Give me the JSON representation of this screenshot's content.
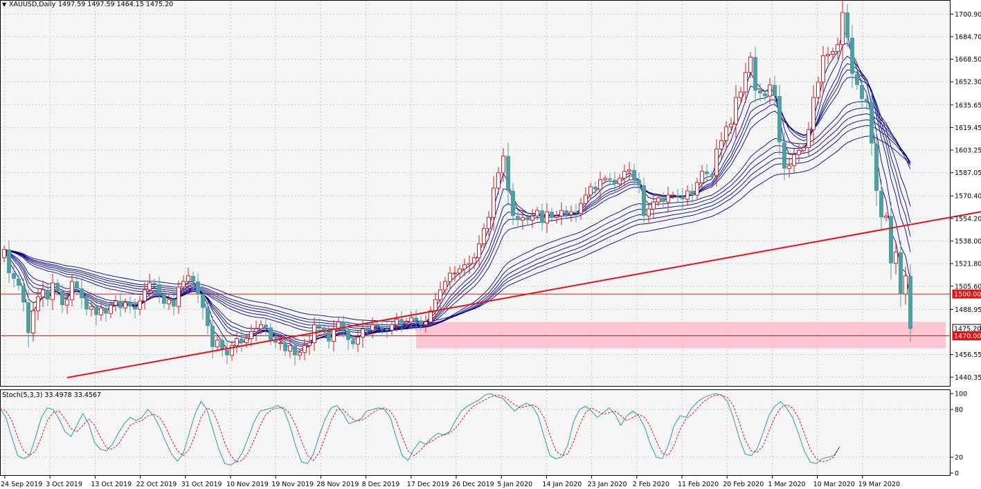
{
  "header": {
    "symbol": "XAUUSD,Daily",
    "ohlc": "1497.59 1497.59 1464.15 1475.20"
  },
  "sub_header": {
    "indicator": "Stoch(5,3,3) 33.4978 33.4567"
  },
  "colors": {
    "background": "#f5f5f5",
    "bull_candle": "#d81e1e",
    "bear_candle": "#4f9ea0",
    "ma_ribbon": "#00008b",
    "trendline": "#e81010",
    "support_zone": "#ffb6c8",
    "level_line": "#e81010",
    "stoch_main": "#2a9aa0",
    "stoch_signal": "#e81010"
  },
  "chart_data": [
    {
      "type": "candlestick",
      "title": "XAUUSD,Daily",
      "x_tick_labels": [
        "24 Sep 2019",
        "3 Oct 2019",
        "13 Oct 2019",
        "22 Oct 2019",
        "31 Oct 2019",
        "10 Nov 2019",
        "19 Nov 2019",
        "28 Nov 2019",
        "8 Dec 2019",
        "17 Dec 2019",
        "26 Dec 2019",
        "5 Jan 2020",
        "14 Jan 2020",
        "23 Jan 2020",
        "2 Feb 2020",
        "11 Feb 2020",
        "20 Feb 2020",
        "1 Mar 2020",
        "10 Mar 2020",
        "19 Mar 2020"
      ],
      "y_tick_labels": [
        "1700.90",
        "1684.70",
        "1668.50",
        "1652.30",
        "1635.65",
        "1619.45",
        "1603.25",
        "1587.05",
        "1570.40",
        "1554.20",
        "1538.00",
        "1521.80",
        "1505.60",
        "1488.95",
        "1456.55",
        "1440.35"
      ],
      "ylim": [
        1438,
        1707
      ],
      "price_labels": [
        {
          "value": 1500.0,
          "text": "1500.00"
        },
        {
          "value": 1475.2,
          "text": "1475.20"
        },
        {
          "value": 1470.0,
          "text": "1470.00"
        }
      ],
      "horizontal_levels": [
        1500.0,
        1470.0
      ],
      "support_zone": [
        1461,
        1480
      ],
      "trendline_points": [
        [
          13,
          1440
        ],
        [
          238,
          1582
        ]
      ],
      "close": [
        1532,
        1515,
        1511,
        1506,
        1494,
        1472,
        1488,
        1498,
        1503,
        1496,
        1508,
        1502,
        1492,
        1496,
        1509,
        1504,
        1497,
        1489,
        1491,
        1485,
        1490,
        1486,
        1492,
        1495,
        1490,
        1494,
        1491,
        1489,
        1495,
        1503,
        1508,
        1507,
        1500,
        1493,
        1496,
        1491,
        1505,
        1509,
        1513,
        1509,
        1500,
        1490,
        1477,
        1462,
        1467,
        1460,
        1456,
        1463,
        1468,
        1465,
        1468,
        1473,
        1475,
        1478,
        1476,
        1467,
        1465,
        1465,
        1459,
        1463,
        1456,
        1458,
        1463,
        1465,
        1478,
        1476,
        1473,
        1466,
        1475,
        1480,
        1474,
        1467,
        1464,
        1469,
        1475,
        1474,
        1478,
        1477,
        1475,
        1474,
        1478,
        1482,
        1479,
        1480,
        1483,
        1481,
        1478,
        1480,
        1488,
        1496,
        1503,
        1509,
        1515,
        1515,
        1518,
        1521,
        1522,
        1526,
        1536,
        1547,
        1555,
        1576,
        1587,
        1599,
        1574,
        1556,
        1553,
        1555,
        1553,
        1556,
        1560,
        1551,
        1559,
        1555,
        1556,
        1560,
        1557,
        1559,
        1558,
        1565,
        1571,
        1577,
        1575,
        1582,
        1583,
        1582,
        1579,
        1583,
        1588,
        1589,
        1582,
        1578,
        1556,
        1561,
        1566,
        1569,
        1566,
        1571,
        1571,
        1570,
        1568,
        1574,
        1571,
        1580,
        1588,
        1586,
        1585,
        1604,
        1610,
        1620,
        1622,
        1641,
        1645,
        1659,
        1670,
        1646,
        1644,
        1642,
        1650,
        1642,
        1609,
        1590,
        1592,
        1600,
        1603,
        1605,
        1618,
        1641,
        1652,
        1671,
        1672,
        1674,
        1679,
        1702,
        1684,
        1658,
        1650,
        1640,
        1638,
        1608,
        1574,
        1555,
        1556,
        1522,
        1530,
        1500,
        1513,
        1475
      ]
    },
    {
      "type": "line",
      "title": "Stoch(5,3,3) 33.4978 33.4567",
      "y_tick_labels": [
        "100",
        "80",
        "20",
        "0"
      ],
      "ylim": [
        0,
        100
      ],
      "series": [
        {
          "name": "",
          "values": [
            82,
            70,
            45,
            22,
            18,
            22,
            45,
            70,
            82,
            80,
            68,
            52,
            46,
            60,
            75,
            62,
            38,
            30,
            28,
            36,
            50,
            62,
            70,
            66,
            70,
            80,
            72,
            58,
            40,
            24,
            15,
            25,
            50,
            75,
            90,
            80,
            55,
            30,
            12,
            10,
            15,
            26,
            45,
            65,
            78,
            80,
            82,
            85,
            80,
            60,
            34,
            14,
            12,
            24,
            48,
            68,
            82,
            85,
            75,
            62,
            65,
            68,
            78,
            80,
            82,
            80,
            70,
            45,
            22,
            16,
            30,
            40,
            36,
            44,
            50,
            48,
            52,
            66,
            78,
            84,
            88,
            92,
            98,
            100,
            96,
            94,
            86,
            78,
            84,
            88,
            84,
            72,
            46,
            22,
            18,
            20,
            35,
            65,
            80,
            84,
            78,
            70,
            76,
            82,
            74,
            60,
            72,
            78,
            72,
            58,
            36,
            20,
            18,
            35,
            60,
            72,
            70,
            82,
            90,
            95,
            98,
            100,
            98,
            90,
            70,
            44,
            24,
            22,
            30,
            50,
            72,
            84,
            90,
            82,
            70,
            50,
            28,
            14,
            12,
            18,
            20,
            22,
            33.5
          ]
        },
        {
          "name": "",
          "values": [
            82,
            78,
            66,
            45,
            28,
            22,
            28,
            45,
            66,
            76,
            78,
            68,
            56,
            52,
            60,
            68,
            60,
            45,
            32,
            30,
            36,
            48,
            60,
            64,
            66,
            72,
            74,
            70,
            58,
            42,
            28,
            22,
            30,
            48,
            70,
            82,
            78,
            60,
            38,
            22,
            14,
            16,
            26,
            42,
            60,
            74,
            80,
            82,
            82,
            75,
            60,
            40,
            22,
            16,
            26,
            46,
            66,
            80,
            80,
            72,
            66,
            66,
            70,
            76,
            80,
            82,
            78,
            66,
            46,
            28,
            22,
            28,
            36,
            40,
            45,
            48,
            50,
            56,
            66,
            76,
            84,
            88,
            92,
            96,
            98,
            97,
            92,
            86,
            82,
            84,
            86,
            82,
            70,
            48,
            28,
            22,
            24,
            40,
            60,
            76,
            82,
            78,
            74,
            76,
            78,
            72,
            66,
            70,
            74,
            70,
            58,
            40,
            25,
            22,
            35,
            55,
            68,
            74,
            82,
            90,
            95,
            98,
            98,
            95,
            85,
            64,
            42,
            28,
            26,
            34,
            52,
            70,
            82,
            86,
            82,
            70,
            50,
            30,
            18,
            14,
            16,
            20,
            33.5
          ]
        }
      ]
    }
  ]
}
